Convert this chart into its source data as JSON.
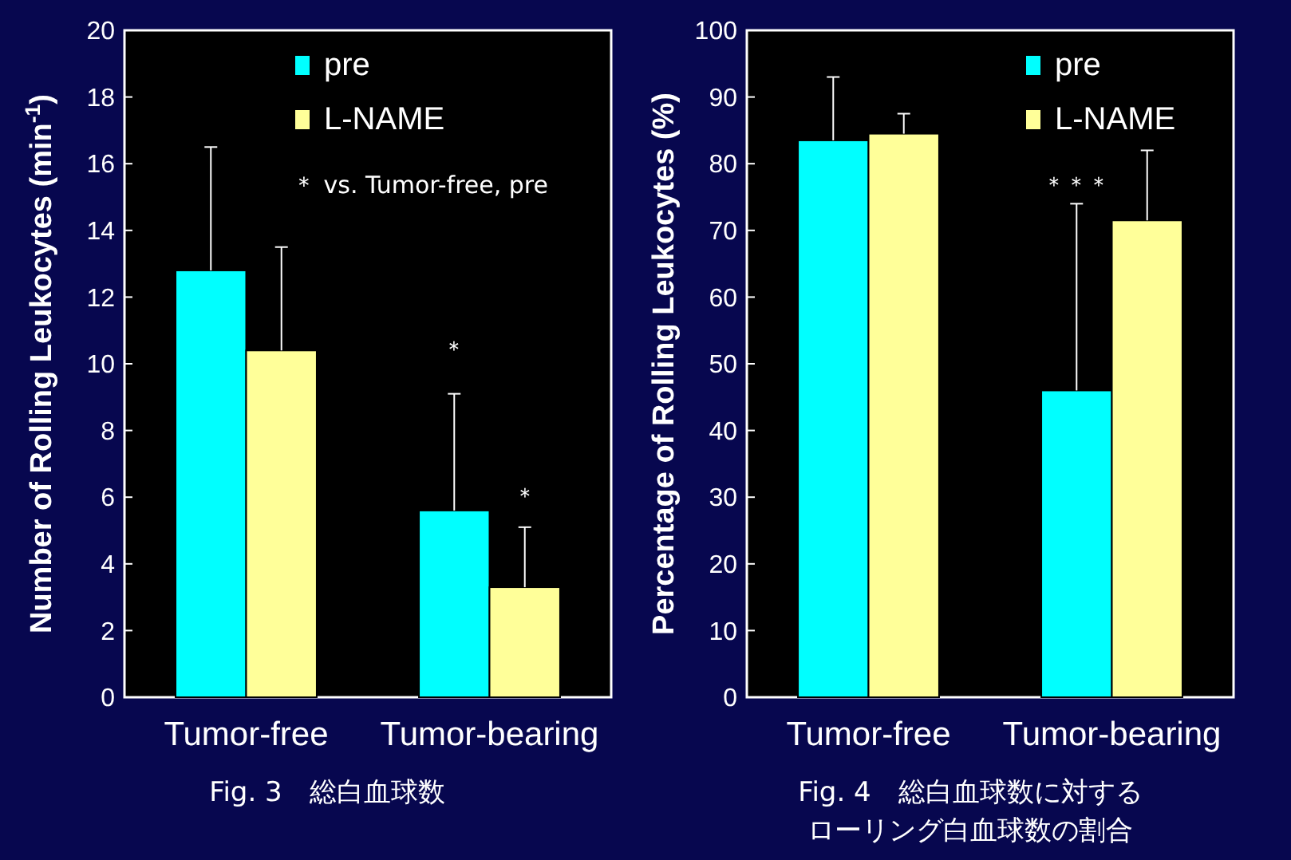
{
  "chart_data": [
    {
      "type": "bar",
      "title": "Fig. 3　総白血球数",
      "ylabel": "Number of Rolling Leukocytes (min$^{-1}$)",
      "categories": [
        "Tumor-free",
        "Tumor-bearing"
      ],
      "series": [
        {
          "name": "pre",
          "color": "#00ffff",
          "values": [
            12.8,
            5.6
          ],
          "errors": [
            [
              12.8,
              16.5
            ],
            [
              5.6,
              9.1
            ]
          ]
        },
        {
          "name": "L-NAME",
          "color": "#ffff99",
          "values": [
            10.4,
            3.3
          ],
          "errors": [
            [
              10.4,
              13.5
            ],
            [
              3.3,
              5.1
            ]
          ]
        }
      ],
      "ylim": [
        0,
        20
      ],
      "yticks": [
        0,
        2,
        4,
        6,
        8,
        10,
        12,
        14,
        16,
        18,
        20
      ],
      "grid": false,
      "legend": "top right",
      "annotations": [
        "＊ vs. Tumor-free, pre",
        "＊",
        "＊"
      ]
    },
    {
      "type": "bar",
      "title": "Fig. 4　総白血球数に対するローリング白血球数の割合",
      "ylabel": "Percentage of Rolling Leukocytes (%)",
      "categories": [
        "Tumor-free",
        "Tumor-bearing"
      ],
      "series": [
        {
          "name": "pre",
          "color": "#00ffff",
          "values": [
            83.5,
            46
          ],
          "errors": [
            [
              83.5,
              93
            ],
            [
              46,
              74
            ]
          ]
        },
        {
          "name": "L-NAME",
          "color": "#ffff99",
          "values": [
            84.5,
            71.5
          ],
          "errors": [
            [
              84.5,
              87.5
            ],
            [
              71.5,
              82
            ]
          ]
        }
      ],
      "ylim": [
        0,
        100
      ],
      "yticks": [
        0,
        10,
        20,
        30,
        40,
        50,
        60,
        70,
        80,
        90,
        100
      ],
      "grid": false,
      "legend": "top right",
      "annotations": [
        "＊＊＊"
      ]
    }
  ]
}
